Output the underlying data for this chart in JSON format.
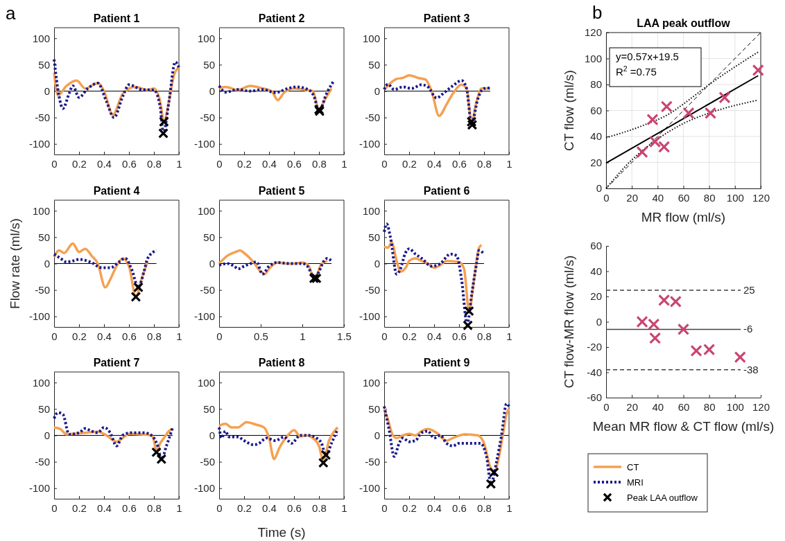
{
  "chart_data": [
    {
      "type": "line",
      "title": "Patient 1",
      "annotations": [
        "a"
      ],
      "xlim": [
        0,
        1
      ],
      "xticks": [
        0,
        0.2,
        0.4,
        0.6,
        0.8,
        1
      ],
      "ylim": [
        -120,
        120
      ],
      "yticks": [
        -100,
        -50,
        0,
        50,
        100
      ],
      "series": [
        {
          "color": "#000000",
          "line_style": "solid",
          "x": [
            0,
            1
          ],
          "values": [
            0,
            0
          ]
        },
        {
          "color": "#f5a050",
          "line_style": "solid",
          "x": [
            0,
            0.03,
            0.1,
            0.18,
            0.25,
            0.35,
            0.4,
            0.47,
            0.55,
            0.65,
            0.75,
            0.8,
            0.85,
            0.88,
            0.92,
            0.96,
            1.0
          ],
          "values": [
            35,
            -8,
            10,
            20,
            5,
            15,
            0,
            -45,
            -5,
            8,
            2,
            5,
            -20,
            -58,
            -20,
            30,
            45
          ]
        },
        {
          "color": "#1a1a8c",
          "line_style": "dotted",
          "x": [
            0,
            0.04,
            0.07,
            0.12,
            0.15,
            0.2,
            0.27,
            0.35,
            0.42,
            0.48,
            0.55,
            0.6,
            0.7,
            0.8,
            0.85,
            0.875,
            0.92,
            0.97,
            1.0
          ],
          "values": [
            60,
            -10,
            -33,
            -5,
            10,
            -12,
            5,
            15,
            -20,
            -50,
            -10,
            12,
            3,
            2,
            -30,
            -80,
            -20,
            55,
            45
          ]
        },
        {
          "type": "scatter",
          "color": "#000000",
          "marker": "cross",
          "x": [
            0.88,
            0.875
          ],
          "values": [
            -58,
            -80
          ]
        }
      ]
    },
    {
      "type": "line",
      "title": "Patient 2",
      "xlim": [
        0,
        1
      ],
      "xticks": [
        0,
        0.2,
        0.4,
        0.6,
        0.8,
        1
      ],
      "ylim": [
        -120,
        120
      ],
      "yticks": [
        -100,
        -50,
        0,
        50,
        100
      ],
      "series": [
        {
          "color": "#000000",
          "line_style": "solid",
          "x": [
            0,
            0.9
          ],
          "values": [
            0,
            0
          ]
        },
        {
          "color": "#f5a050",
          "line_style": "solid",
          "x": [
            0,
            0.05,
            0.15,
            0.25,
            0.35,
            0.42,
            0.47,
            0.52,
            0.6,
            0.7,
            0.75,
            0.8,
            0.85,
            0.9
          ],
          "values": [
            5,
            8,
            2,
            10,
            5,
            0,
            -17,
            -3,
            5,
            2,
            0,
            -35,
            -15,
            5
          ]
        },
        {
          "color": "#1a1a8c",
          "line_style": "dotted",
          "x": [
            0,
            0.05,
            0.15,
            0.25,
            0.35,
            0.45,
            0.55,
            0.62,
            0.72,
            0.76,
            0.8,
            0.86,
            0.92
          ],
          "values": [
            10,
            -2,
            3,
            0,
            3,
            -3,
            5,
            8,
            2,
            -10,
            -38,
            -5,
            20
          ]
        },
        {
          "type": "scatter",
          "color": "#000000",
          "marker": "cross",
          "x": [
            0.8,
            0.805
          ],
          "values": [
            -35,
            -38
          ]
        }
      ]
    },
    {
      "type": "line",
      "title": "Patient 3",
      "xlim": [
        0,
        1
      ],
      "xticks": [
        0,
        0.2,
        0.4,
        0.6,
        0.8,
        1
      ],
      "ylim": [
        -120,
        120
      ],
      "yticks": [
        -100,
        -50,
        0,
        50,
        100
      ],
      "series": [
        {
          "color": "#000000",
          "line_style": "solid",
          "x": [
            0,
            0.85
          ],
          "values": [
            0,
            0
          ]
        },
        {
          "color": "#f5a050",
          "line_style": "solid",
          "x": [
            0,
            0.05,
            0.1,
            0.15,
            0.2,
            0.27,
            0.33,
            0.38,
            0.44,
            0.5,
            0.55,
            0.62,
            0.66,
            0.7,
            0.74,
            0.78,
            0.85
          ],
          "values": [
            3,
            15,
            23,
            25,
            30,
            25,
            22,
            0,
            -47,
            -25,
            -5,
            12,
            5,
            -58,
            -20,
            5,
            5
          ]
        },
        {
          "color": "#1a1a8c",
          "line_style": "dotted",
          "x": [
            0,
            0.03,
            0.08,
            0.15,
            0.22,
            0.3,
            0.35,
            0.42,
            0.48,
            0.55,
            0.62,
            0.66,
            0.7,
            0.75,
            0.8,
            0.85
          ],
          "values": [
            3,
            13,
            3,
            8,
            5,
            12,
            8,
            -13,
            -3,
            10,
            20,
            5,
            -62,
            -15,
            5,
            6
          ]
        },
        {
          "type": "scatter",
          "color": "#000000",
          "marker": "cross",
          "x": [
            0.7,
            0.705
          ],
          "values": [
            -58,
            -64
          ]
        }
      ]
    },
    {
      "type": "line",
      "title": "Patient 4",
      "ylabel": "Flow rate (ml/s)",
      "xlim": [
        0,
        1
      ],
      "xticks": [
        0,
        0.2,
        0.4,
        0.6,
        0.8,
        1
      ],
      "ylim": [
        -120,
        120
      ],
      "yticks": [
        -100,
        -50,
        0,
        50,
        100
      ],
      "series": [
        {
          "color": "#000000",
          "line_style": "solid",
          "x": [
            0,
            0.82
          ],
          "values": [
            0,
            0
          ]
        },
        {
          "color": "#f5a050",
          "line_style": "solid",
          "x": [
            0,
            0.04,
            0.08,
            0.15,
            0.2,
            0.25,
            0.3,
            0.35,
            0.41,
            0.45,
            0.5,
            0.55,
            0.6,
            0.655,
            0.7,
            0.75
          ],
          "values": [
            12,
            25,
            20,
            38,
            22,
            28,
            15,
            0,
            -45,
            -30,
            -5,
            10,
            -5,
            -62,
            -30,
            5
          ]
        },
        {
          "color": "#1a1a8c",
          "line_style": "dotted",
          "x": [
            0,
            0.05,
            0.1,
            0.15,
            0.2,
            0.3,
            0.38,
            0.45,
            0.52,
            0.57,
            0.62,
            0.675,
            0.72,
            0.75,
            0.82
          ],
          "values": [
            18,
            10,
            3,
            5,
            8,
            2,
            -8,
            -8,
            3,
            10,
            -10,
            -45,
            -15,
            10,
            25
          ]
        },
        {
          "type": "scatter",
          "color": "#000000",
          "marker": "cross",
          "x": [
            0.655,
            0.675
          ],
          "values": [
            -63,
            -45
          ]
        }
      ]
    },
    {
      "type": "line",
      "title": "Patient 5",
      "xlim": [
        0,
        1.5
      ],
      "xticks": [
        0,
        0.5,
        1,
        1.5
      ],
      "ylim": [
        -120,
        120
      ],
      "yticks": [
        -100,
        -50,
        0,
        50,
        100
      ],
      "series": [
        {
          "color": "#000000",
          "line_style": "solid",
          "x": [
            0,
            1.35
          ],
          "values": [
            0,
            0
          ]
        },
        {
          "color": "#f5a050",
          "line_style": "solid",
          "x": [
            0,
            0.1,
            0.2,
            0.25,
            0.3,
            0.4,
            0.5,
            0.55,
            0.6,
            0.7,
            0.8,
            0.9,
            1.0,
            1.08,
            1.13,
            1.18,
            1.22,
            1.3
          ],
          "values": [
            0,
            15,
            22,
            25,
            20,
            5,
            -15,
            -20,
            -10,
            2,
            0,
            0,
            2,
            -5,
            -25,
            -20,
            -3,
            5
          ]
        },
        {
          "color": "#1a1a8c",
          "line_style": "dotted",
          "x": [
            0,
            0.1,
            0.18,
            0.23,
            0.3,
            0.38,
            0.45,
            0.52,
            0.6,
            0.7,
            0.85,
            1.0,
            1.06,
            1.15,
            1.2,
            1.26,
            1.3,
            1.35
          ],
          "values": [
            -3,
            0,
            -5,
            -10,
            -5,
            0,
            3,
            -20,
            -5,
            2,
            0,
            0,
            -5,
            -28,
            -15,
            5,
            10,
            5
          ]
        },
        {
          "type": "scatter",
          "color": "#000000",
          "marker": "cross",
          "x": [
            1.14,
            1.17
          ],
          "values": [
            -28,
            -28
          ]
        }
      ]
    },
    {
      "type": "line",
      "title": "Patient 6",
      "xlim": [
        0,
        1
      ],
      "xticks": [
        0,
        0.2,
        0.4,
        0.6,
        0.8,
        1
      ],
      "ylim": [
        -120,
        120
      ],
      "yticks": [
        -100,
        -50,
        0,
        50,
        100
      ],
      "series": [
        {
          "color": "#000000",
          "line_style": "solid",
          "x": [
            0,
            0.8
          ],
          "values": [
            0,
            0
          ]
        },
        {
          "color": "#f5a050",
          "line_style": "solid",
          "x": [
            0,
            0.03,
            0.06,
            0.1,
            0.13,
            0.18,
            0.2,
            0.25,
            0.3,
            0.35,
            0.4,
            0.45,
            0.5,
            0.6,
            0.64,
            0.68,
            0.72,
            0.76,
            0.78
          ],
          "values": [
            32,
            30,
            40,
            5,
            -15,
            -5,
            5,
            10,
            5,
            0,
            -8,
            -3,
            5,
            3,
            -10,
            -90,
            -30,
            30,
            35
          ]
        },
        {
          "color": "#1a1a8c",
          "line_style": "dotted",
          "x": [
            0,
            0.02,
            0.05,
            0.1,
            0.13,
            0.17,
            0.2,
            0.25,
            0.3,
            0.38,
            0.45,
            0.53,
            0.58,
            0.62,
            0.665,
            0.7,
            0.74,
            0.76,
            0.8
          ],
          "values": [
            60,
            75,
            50,
            -20,
            -10,
            20,
            28,
            18,
            10,
            -5,
            0,
            18,
            15,
            -30,
            -115,
            -60,
            0,
            25,
            18
          ]
        },
        {
          "type": "scatter",
          "color": "#000000",
          "marker": "cross",
          "x": [
            0.68,
            0.67
          ],
          "values": [
            -90,
            -117
          ]
        }
      ]
    },
    {
      "type": "line",
      "title": "Patient 7",
      "xlim": [
        0,
        1
      ],
      "xticks": [
        0,
        0.2,
        0.4,
        0.6,
        0.8,
        1
      ],
      "ylim": [
        -120,
        120
      ],
      "yticks": [
        -100,
        -50,
        0,
        50,
        100
      ],
      "series": [
        {
          "color": "#000000",
          "line_style": "solid",
          "x": [
            0,
            0.95
          ],
          "values": [
            0,
            0
          ]
        },
        {
          "color": "#f5a050",
          "line_style": "solid",
          "x": [
            0,
            0.05,
            0.1,
            0.15,
            0.25,
            0.35,
            0.42,
            0.5,
            0.55,
            0.6,
            0.7,
            0.78,
            0.8,
            0.82,
            0.85,
            0.88,
            0.92,
            0.95
          ],
          "values": [
            15,
            12,
            2,
            3,
            5,
            7,
            0,
            -12,
            -5,
            3,
            2,
            0,
            -10,
            -30,
            -15,
            -5,
            8,
            12
          ]
        },
        {
          "color": "#1a1a8c",
          "line_style": "dotted",
          "x": [
            0,
            0.03,
            0.07,
            0.12,
            0.2,
            0.25,
            0.3,
            0.35,
            0.4,
            0.45,
            0.5,
            0.55,
            0.62,
            0.72,
            0.78,
            0.83,
            0.86,
            0.9,
            0.95
          ],
          "values": [
            32,
            43,
            40,
            2,
            5,
            13,
            8,
            5,
            15,
            5,
            -20,
            0,
            5,
            5,
            0,
            -20,
            -45,
            -20,
            15
          ]
        },
        {
          "type": "scatter",
          "color": "#000000",
          "marker": "cross",
          "x": [
            0.82,
            0.86
          ],
          "values": [
            -32,
            -45
          ]
        }
      ]
    },
    {
      "type": "line",
      "title": "Patient 8",
      "xlabel": "Time (s)",
      "xlim": [
        0,
        1
      ],
      "xticks": [
        0,
        0.2,
        0.4,
        0.6,
        0.8,
        1
      ],
      "ylim": [
        -120,
        120
      ],
      "yticks": [
        -100,
        -50,
        0,
        50,
        100
      ],
      "series": [
        {
          "color": "#000000",
          "line_style": "solid",
          "x": [
            0,
            0.95
          ],
          "values": [
            0,
            0
          ]
        },
        {
          "color": "#f5a050",
          "line_style": "solid",
          "x": [
            0,
            0.05,
            0.1,
            0.15,
            0.22,
            0.3,
            0.36,
            0.4,
            0.44,
            0.48,
            0.55,
            0.6,
            0.65,
            0.7,
            0.75,
            0.8,
            0.835,
            0.88,
            0.93,
            0.95
          ],
          "values": [
            18,
            22,
            15,
            15,
            25,
            20,
            15,
            -5,
            -45,
            -25,
            0,
            10,
            -2,
            0,
            -5,
            -20,
            -48,
            -10,
            10,
            15
          ]
        },
        {
          "color": "#1a1a8c",
          "line_style": "dotted",
          "x": [
            0,
            0.02,
            0.05,
            0.08,
            0.15,
            0.2,
            0.28,
            0.32,
            0.38,
            0.45,
            0.52,
            0.58,
            0.65,
            0.72,
            0.78,
            0.82,
            0.855,
            0.9,
            0.95
          ],
          "values": [
            15,
            -5,
            8,
            -3,
            -3,
            -10,
            -18,
            -15,
            -5,
            -10,
            -3,
            -15,
            0,
            0,
            -5,
            -15,
            -38,
            -15,
            12
          ]
        },
        {
          "type": "scatter",
          "color": "#000000",
          "marker": "cross",
          "x": [
            0.835,
            0.855
          ],
          "values": [
            -52,
            -37
          ]
        }
      ]
    },
    {
      "type": "line",
      "title": "Patient 9",
      "legend": "right",
      "xlim": [
        0,
        1
      ],
      "xticks": [
        0,
        0.2,
        0.4,
        0.6,
        0.8,
        1
      ],
      "ylim": [
        -120,
        120
      ],
      "yticks": [
        -100,
        -50,
        0,
        50,
        100
      ],
      "series": [
        {
          "color": "#000000",
          "line_style": "solid",
          "x": [
            0,
            1
          ],
          "values": [
            0,
            0
          ]
        },
        {
          "name": "CT",
          "color": "#f5a050",
          "line_style": "solid",
          "x": [
            0,
            0.03,
            0.07,
            0.1,
            0.15,
            0.2,
            0.25,
            0.3,
            0.35,
            0.42,
            0.5,
            0.55,
            0.65,
            0.75,
            0.8,
            0.85,
            0.88,
            0.92,
            0.95,
            0.98,
            1.0
          ],
          "values": [
            50,
            30,
            0,
            -5,
            0,
            3,
            0,
            8,
            12,
            5,
            -10,
            -5,
            2,
            0,
            -15,
            -60,
            -70,
            -40,
            0,
            40,
            50
          ]
        },
        {
          "name": "MRI",
          "color": "#1a1a8c",
          "line_style": "dotted",
          "x": [
            0,
            0.04,
            0.08,
            0.12,
            0.15,
            0.2,
            0.25,
            0.3,
            0.35,
            0.4,
            0.45,
            0.5,
            0.55,
            0.6,
            0.7,
            0.77,
            0.82,
            0.855,
            0.9,
            0.94,
            0.98,
            1.0
          ],
          "values": [
            55,
            10,
            -40,
            -15,
            -5,
            -12,
            -10,
            5,
            8,
            -5,
            0,
            -15,
            -20,
            -15,
            -15,
            -15,
            -40,
            -92,
            -50,
            0,
            60,
            55
          ]
        },
        {
          "type": "scatter",
          "name": "Peak LAA outflow",
          "color": "#000000",
          "marker": "cross",
          "x": [
            0.88,
            0.855
          ],
          "values": [
            -70,
            -92
          ]
        }
      ]
    },
    {
      "type": "scatter",
      "title": "LAA peak outflow",
      "xlabel": "MR flow (ml/s)",
      "ylabel": "CT flow (ml/s)",
      "annotations": [
        "b",
        "y=0.57x+19.5",
        "R$^{2}$ =0.75"
      ],
      "grid": true,
      "xlim": [
        0,
        120
      ],
      "xticks": [
        0,
        20,
        40,
        60,
        80,
        100,
        120
      ],
      "ylim": [
        0,
        120
      ],
      "yticks": [
        0,
        20,
        40,
        60,
        80,
        100,
        120
      ],
      "series": [
        {
          "type": "line",
          "color": "#000000",
          "line_style": "dashed",
          "x": [
            0,
            120
          ],
          "values": [
            0,
            120
          ]
        },
        {
          "type": "line",
          "color": "#000000",
          "line_style": "dotted",
          "x": [
            0,
            30,
            50,
            60,
            80,
            118
          ],
          "values": [
            39,
            49,
            58,
            65,
            80,
            105
          ]
        },
        {
          "type": "line",
          "color": "#000000",
          "line_style": "dotted",
          "x": [
            0,
            20,
            40,
            60,
            80,
            118
          ],
          "values": [
            0,
            22,
            38,
            50,
            58,
            68
          ]
        },
        {
          "type": "line",
          "color": "#000000",
          "line_style": "solid",
          "x": [
            0,
            118
          ],
          "values": [
            19.5,
            86.8
          ]
        },
        {
          "color": "#c9456f",
          "marker": "cross",
          "x": [
            28,
            36,
            38,
            45,
            47,
            64,
            81,
            92,
            118
          ],
          "values": [
            28,
            53,
            36,
            32,
            63,
            58,
            58,
            70,
            91
          ]
        }
      ]
    },
    {
      "type": "scatter",
      "xlabel": "Mean MR flow & CT flow (ml/s)",
      "ylabel": "CT flow-MR flow (ml/s)",
      "xlim": [
        0,
        120
      ],
      "xticks": [
        0,
        20,
        40,
        60,
        80,
        100,
        120
      ],
      "ylim": [
        -60,
        60
      ],
      "yticks": [
        -60,
        -40,
        -20,
        0,
        20,
        40,
        60
      ],
      "ref_lines": [
        {
          "axis": "y",
          "value": 25,
          "label": "25",
          "color": "#404040",
          "line_style": "dashed"
        },
        {
          "axis": "y",
          "value": -6,
          "label": "-6",
          "color": "#404040",
          "line_style": "solid"
        },
        {
          "axis": "y",
          "value": -38,
          "label": "-38",
          "color": "#404040",
          "line_style": "dashed"
        }
      ],
      "series": [
        {
          "color": "#c9456f",
          "marker": "cross",
          "x": [
            28,
            37,
            38,
            45,
            54,
            60,
            70,
            80,
            104
          ],
          "values": [
            0,
            -2,
            -13,
            17,
            16,
            -6,
            -23,
            -22,
            -28
          ]
        }
      ]
    }
  ]
}
